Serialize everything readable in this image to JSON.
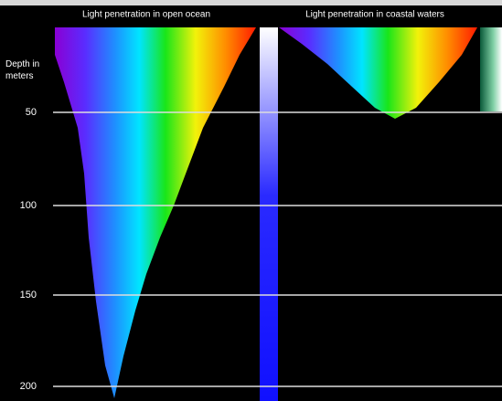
{
  "panels": [
    {
      "title": "Light penetration in open ocean"
    },
    {
      "title": "Light penetration in coastal waters"
    }
  ],
  "depth_axis": {
    "label": "Depth in meters",
    "ticks": [
      "50",
      "100",
      "150",
      "200"
    ]
  }
}
